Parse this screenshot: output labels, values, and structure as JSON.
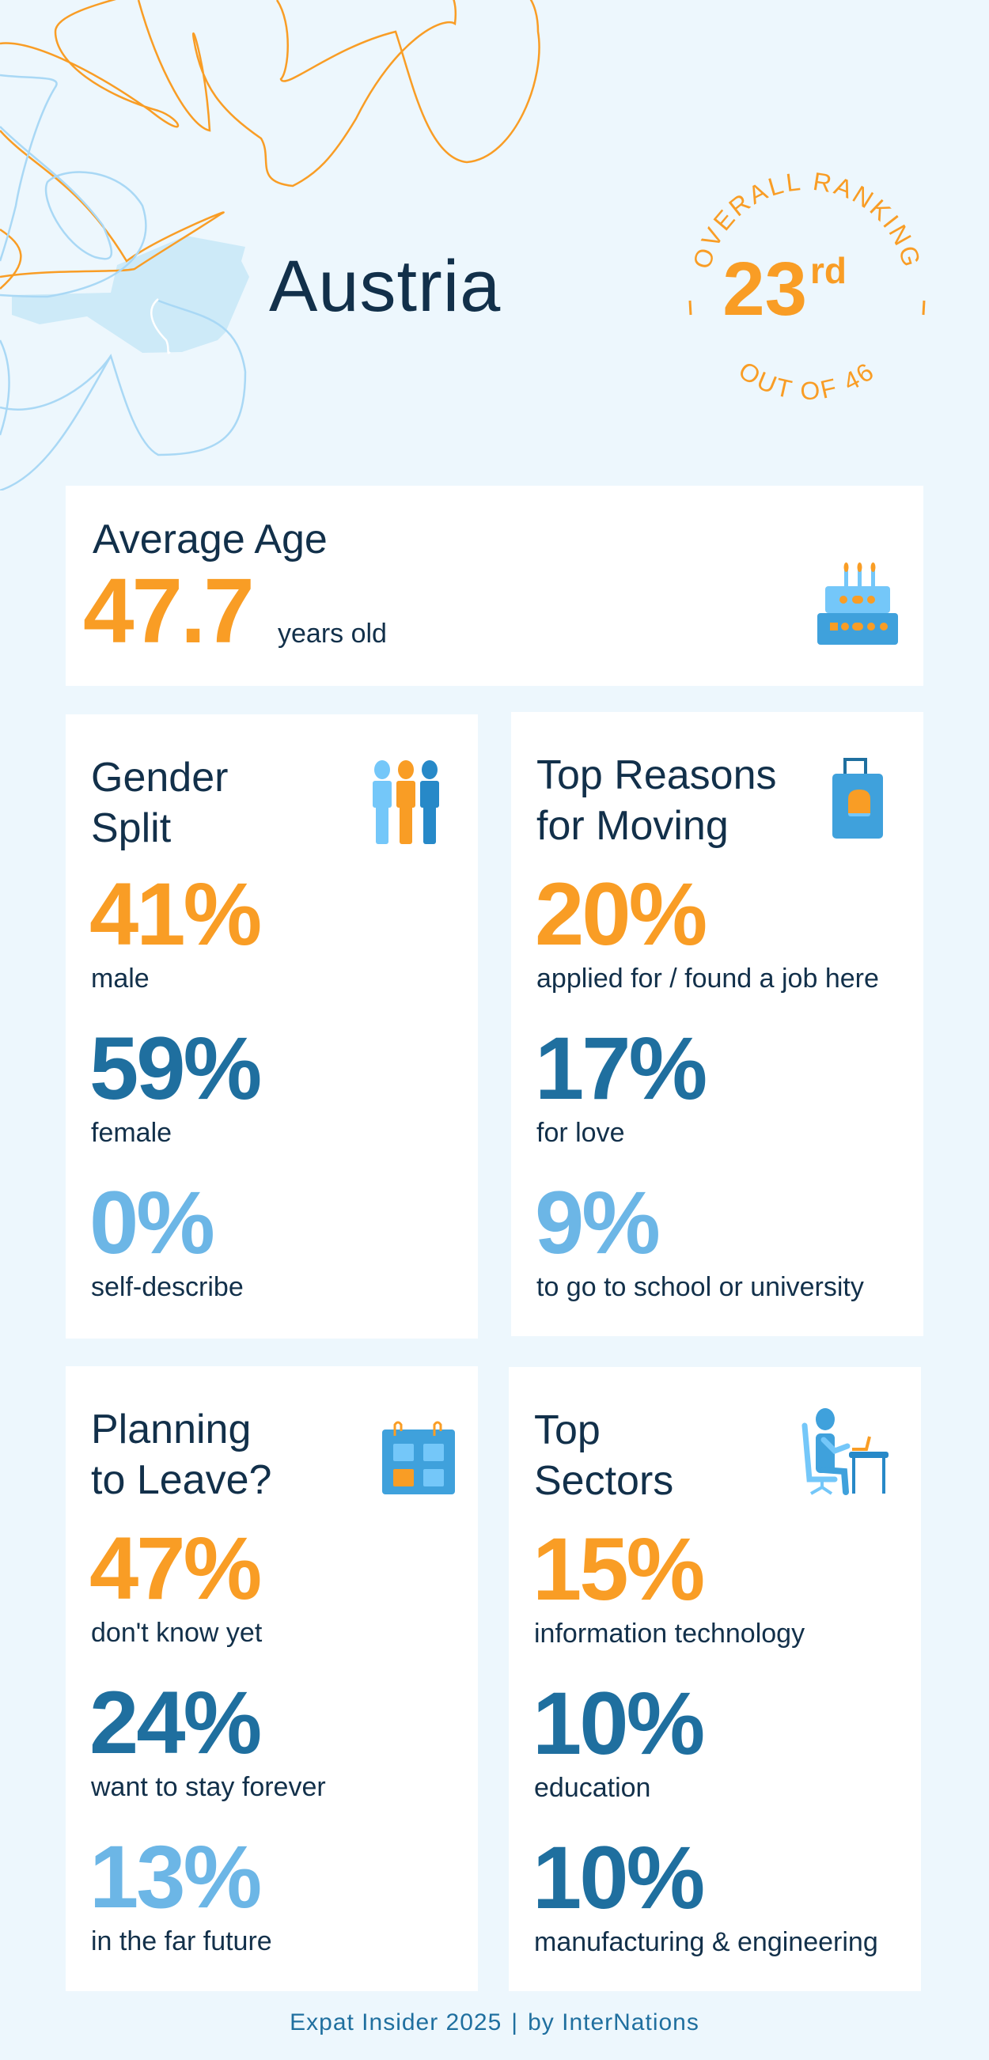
{
  "header": {
    "country": "Austria",
    "ranking": {
      "top_arc": "OVERALL RANKING",
      "rank": "23",
      "suffix": "rd",
      "bottom_arc": "OUT OF 46"
    }
  },
  "average_age": {
    "title": "Average Age",
    "value": "47.7",
    "unit": "years old",
    "icon": "cake-icon"
  },
  "gender_split": {
    "title_line1": "Gender",
    "title_line2": "Split",
    "icon": "people-icon",
    "stats": [
      {
        "value": "41%",
        "label": "male",
        "color": "#F99D25"
      },
      {
        "value": "59%",
        "label": "female",
        "color": "#1F6F9F"
      },
      {
        "value": "0%",
        "label": "self-describe",
        "color": "#6CB6E6"
      }
    ]
  },
  "reasons": {
    "title_line1": "Top Reasons",
    "title_line2": "for Moving",
    "icon": "suitcase-icon",
    "stats": [
      {
        "value": "20%",
        "label": "applied for / found a job here",
        "color": "#F99D25"
      },
      {
        "value": "17%",
        "label": "for love",
        "color": "#1F6F9F"
      },
      {
        "value": "9%",
        "label": "to go to school or university",
        "color": "#6CB6E6"
      }
    ]
  },
  "planning": {
    "title_line1": "Planning",
    "title_line2": "to Leave?",
    "icon": "calendar-icon",
    "stats": [
      {
        "value": "47%",
        "label": "don't know yet",
        "color": "#F99D25"
      },
      {
        "value": "24%",
        "label": "want to stay forever",
        "color": "#1F6F9F"
      },
      {
        "value": "13%",
        "label": "in the far future",
        "color": "#6CB6E6"
      }
    ]
  },
  "sectors": {
    "title_line1": "Top",
    "title_line2": "Sectors",
    "icon": "person-at-desk-icon",
    "stats": [
      {
        "value": "15%",
        "label": "information technology",
        "color": "#F99D25"
      },
      {
        "value": "10%",
        "label": "education",
        "color": "#1F6F9F"
      },
      {
        "value": "10%",
        "label": "manufacturing & engineering",
        "color": "#1F6F9F"
      }
    ]
  },
  "footer": {
    "left": "Expat Insider 2025",
    "separator": "|",
    "right": "by InterNations"
  },
  "colors": {
    "orange": "#F99D25",
    "dark_blue": "#1F6F9F",
    "light_blue": "#6CB6E6",
    "navy": "#12304A",
    "background": "#EDF7FD"
  }
}
